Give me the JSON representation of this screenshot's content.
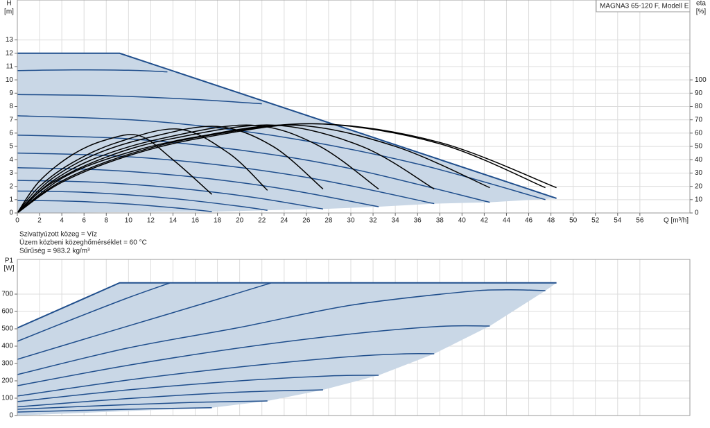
{
  "chart_data": [
    {
      "type": "line",
      "title": "MAGNA3 65-120 F, Modell E",
      "y_label": "H",
      "y_unit": "[m]",
      "y2_label": "eta",
      "y2_unit": "[%]",
      "x_label": "Q [m³/h]",
      "annotations": [
        "Szivattyúzott közeg = Víz",
        "Üzem közbeni közeghőmérséklet = 60 °C",
        "Sűrűség = 983.2 kg/m³"
      ],
      "xlim": [
        0,
        60.5
      ],
      "ylim": [
        0,
        16
      ],
      "y2lim": [
        0,
        160
      ],
      "xticks": [
        0,
        2,
        4,
        6,
        8,
        10,
        12,
        14,
        16,
        18,
        20,
        22,
        24,
        26,
        28,
        30,
        32,
        34,
        36,
        38,
        40,
        42,
        44,
        46,
        48,
        50,
        52,
        54,
        56
      ],
      "yticks": [
        0,
        1,
        2,
        3,
        4,
        5,
        6,
        7,
        8,
        9,
        10,
        11,
        12,
        13
      ],
      "y2ticks": [
        0,
        10,
        20,
        30,
        40,
        50,
        60,
        70,
        80,
        90,
        100
      ],
      "grid": true,
      "fill": "#c9d7e6",
      "series": [
        {
          "color": "#1f4e8c",
          "x": [
            0,
            9.2,
            48.5
          ],
          "values": [
            12,
            12,
            1.1
          ]
        },
        {
          "color": "#1f4e8c",
          "x": [
            0,
            5,
            10,
            13.5
          ],
          "values": [
            10.7,
            10.75,
            10.72,
            10.6
          ]
        },
        {
          "color": "#1f4e8c",
          "x": [
            0,
            8,
            16,
            22
          ],
          "values": [
            8.9,
            8.81,
            8.53,
            8.2
          ]
        },
        {
          "color": "#1f4e8c",
          "x": [
            0,
            12,
            24,
            36,
            47.5
          ],
          "values": [
            7.3,
            6.9,
            5.69,
            3.68,
            1.0
          ]
        },
        {
          "color": "#1f4e8c",
          "x": [
            0,
            10,
            20,
            30,
            42.5
          ],
          "values": [
            5.85,
            5.57,
            4.73,
            3.33,
            0.8
          ]
        },
        {
          "color": "#1f4e8c",
          "x": [
            0,
            9,
            18,
            27,
            37.5
          ],
          "values": [
            4.5,
            4.28,
            3.62,
            2.53,
            0.7
          ]
        },
        {
          "color": "#1f4e8c",
          "x": [
            0,
            8,
            16,
            24,
            32.5
          ],
          "values": [
            3.4,
            3.22,
            2.69,
            1.8,
            0.47
          ]
        },
        {
          "color": "#1f4e8c",
          "x": [
            0,
            7,
            14,
            21,
            27.5
          ],
          "values": [
            2.45,
            2.31,
            1.89,
            1.2,
            0.3
          ]
        },
        {
          "color": "#1f4e8c",
          "x": [
            0,
            5,
            10,
            15,
            20,
            22.5
          ],
          "values": [
            1.65,
            1.58,
            1.36,
            1.0,
            0.5,
            0.2
          ]
        },
        {
          "color": "#1f4e8c",
          "x": [
            0,
            5,
            10,
            15,
            17.5
          ],
          "values": [
            0.95,
            0.88,
            0.67,
            0.32,
            0.1
          ]
        },
        {
          "color": "#000000",
          "axis": "y2",
          "x": [
            0,
            2,
            5,
            8,
            11,
            14,
            17.5
          ],
          "values": [
            0,
            24,
            44,
            55,
            58,
            40,
            14
          ]
        },
        {
          "color": "#000000",
          "axis": "y2",
          "x": [
            0,
            2,
            5,
            9,
            14.5,
            19,
            22.5
          ],
          "values": [
            0,
            20,
            38,
            53,
            63,
            45,
            17
          ]
        },
        {
          "color": "#000000",
          "axis": "y2",
          "x": [
            0,
            3,
            7,
            12,
            18,
            23,
            27.5
          ],
          "values": [
            0,
            25,
            44,
            57,
            65,
            50,
            18
          ]
        },
        {
          "color": "#000000",
          "axis": "y2",
          "x": [
            0,
            3,
            7,
            13,
            21,
            27,
            32.5
          ],
          "values": [
            0,
            23,
            41,
            56,
            66,
            51,
            18
          ]
        },
        {
          "color": "#000000",
          "axis": "y2",
          "x": [
            0,
            3,
            8,
            14,
            23,
            31,
            37.5
          ],
          "values": [
            0,
            22,
            42,
            56,
            66,
            50,
            18
          ]
        },
        {
          "color": "#000000",
          "axis": "y2",
          "x": [
            0,
            4,
            9,
            16,
            25,
            34,
            42.5
          ],
          "values": [
            0,
            26,
            43,
            57,
            66,
            50,
            19
          ]
        },
        {
          "color": "#000000",
          "axis": "y2",
          "x": [
            0,
            4,
            10,
            17,
            27,
            38,
            47.5
          ],
          "values": [
            0,
            24,
            44,
            58,
            67,
            52,
            19
          ]
        },
        {
          "color": "#000000",
          "axis": "y2",
          "x": [
            0,
            4,
            10,
            17,
            27,
            38,
            48.5
          ],
          "values": [
            0,
            23,
            43,
            57,
            67,
            53,
            19
          ]
        }
      ]
    },
    {
      "type": "line",
      "y_label": "P1",
      "y_unit": "[W]",
      "xlim": [
        0,
        60.5
      ],
      "ylim": [
        0,
        900
      ],
      "yticks": [
        0,
        100,
        200,
        300,
        400,
        500,
        600,
        700
      ],
      "grid": true,
      "fill": "#c9d7e6",
      "series": [
        {
          "color": "#1f4e8c",
          "x": [
            0,
            9.2,
            48.5
          ],
          "values": [
            505,
            765,
            765
          ]
        },
        {
          "color": "#1f4e8c",
          "x": [
            0,
            5,
            10,
            13.7
          ],
          "values": [
            428,
            556,
            680,
            764
          ]
        },
        {
          "color": "#1f4e8c",
          "x": [
            0,
            6,
            12,
            18,
            22.8
          ],
          "values": [
            324,
            440,
            555,
            670,
            764
          ]
        },
        {
          "color": "#1f4e8c",
          "x": [
            0,
            10,
            20,
            30,
            40,
            44,
            47.5
          ],
          "values": [
            236,
            390,
            508,
            636,
            712,
            725,
            720
          ]
        },
        {
          "color": "#1f4e8c",
          "x": [
            0,
            10,
            20,
            30,
            38,
            42.5
          ],
          "values": [
            172,
            290,
            390,
            470,
            514,
            516
          ]
        },
        {
          "color": "#1f4e8c",
          "x": [
            0,
            10,
            20,
            30,
            35,
            37.5
          ],
          "values": [
            112,
            205,
            280,
            340,
            356,
            356
          ]
        },
        {
          "color": "#1f4e8c",
          "x": [
            0,
            10,
            20,
            28,
            32.5
          ],
          "values": [
            80,
            148,
            200,
            228,
            232
          ]
        },
        {
          "color": "#1f4e8c",
          "x": [
            0,
            10,
            20,
            27.5
          ],
          "values": [
            50,
            98,
            135,
            148
          ]
        },
        {
          "color": "#1f4e8c",
          "x": [
            0,
            8,
            16,
            22.5
          ],
          "values": [
            36,
            58,
            76,
            84
          ]
        },
        {
          "color": "#1f4e8c",
          "x": [
            0,
            6,
            12,
            17.5
          ],
          "values": [
            20,
            30,
            39,
            45
          ]
        }
      ]
    }
  ]
}
